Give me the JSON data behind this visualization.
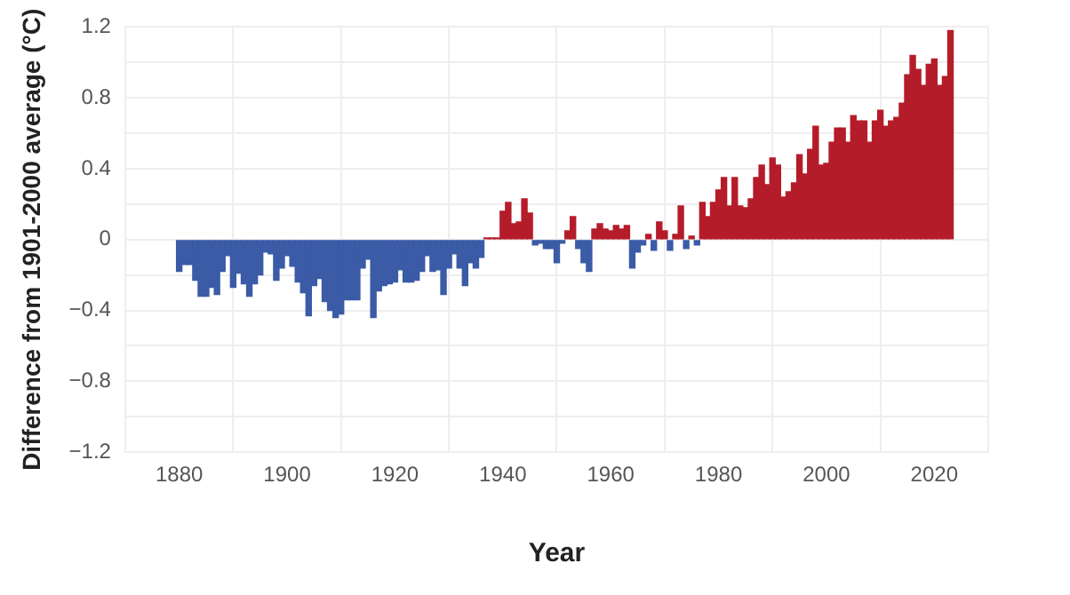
{
  "chart_data": {
    "type": "bar",
    "xlabel": "Year",
    "ylabel": "Difference from 1901-2000 average (°C)",
    "x": [
      1880,
      1881,
      1882,
      1883,
      1884,
      1885,
      1886,
      1887,
      1888,
      1889,
      1890,
      1891,
      1892,
      1893,
      1894,
      1895,
      1896,
      1897,
      1898,
      1899,
      1900,
      1901,
      1902,
      1903,
      1904,
      1905,
      1906,
      1907,
      1908,
      1909,
      1910,
      1911,
      1912,
      1913,
      1914,
      1915,
      1916,
      1917,
      1918,
      1919,
      1920,
      1921,
      1922,
      1923,
      1924,
      1925,
      1926,
      1927,
      1928,
      1929,
      1930,
      1931,
      1932,
      1933,
      1934,
      1935,
      1936,
      1937,
      1938,
      1939,
      1940,
      1941,
      1942,
      1943,
      1944,
      1945,
      1946,
      1947,
      1948,
      1949,
      1950,
      1951,
      1952,
      1953,
      1954,
      1955,
      1956,
      1957,
      1958,
      1959,
      1960,
      1961,
      1962,
      1963,
      1964,
      1965,
      1966,
      1967,
      1968,
      1969,
      1970,
      1971,
      1972,
      1973,
      1974,
      1975,
      1976,
      1977,
      1978,
      1979,
      1980,
      1981,
      1982,
      1983,
      1984,
      1985,
      1986,
      1987,
      1988,
      1989,
      1990,
      1991,
      1992,
      1993,
      1994,
      1995,
      1996,
      1997,
      1998,
      1999,
      2000,
      2001,
      2002,
      2003,
      2004,
      2005,
      2006,
      2007,
      2008,
      2009,
      2010,
      2011,
      2012,
      2013,
      2014,
      2015,
      2016,
      2017,
      2018,
      2019,
      2020,
      2021,
      2022,
      2023
    ],
    "values": [
      -0.18,
      -0.14,
      -0.14,
      -0.23,
      -0.32,
      -0.32,
      -0.27,
      -0.31,
      -0.18,
      -0.09,
      -0.27,
      -0.19,
      -0.25,
      -0.32,
      -0.25,
      -0.2,
      -0.07,
      -0.08,
      -0.23,
      -0.16,
      -0.09,
      -0.15,
      -0.24,
      -0.3,
      -0.43,
      -0.26,
      -0.22,
      -0.35,
      -0.4,
      -0.44,
      -0.42,
      -0.34,
      -0.34,
      -0.34,
      -0.16,
      -0.11,
      -0.44,
      -0.29,
      -0.26,
      -0.25,
      -0.24,
      -0.17,
      -0.24,
      -0.24,
      -0.23,
      -0.18,
      -0.09,
      -0.18,
      -0.17,
      -0.31,
      -0.16,
      -0.08,
      -0.16,
      -0.26,
      -0.13,
      -0.16,
      -0.1,
      0.01,
      0.01,
      0.01,
      0.16,
      0.21,
      0.09,
      0.1,
      0.23,
      0.15,
      -0.03,
      -0.02,
      -0.05,
      -0.05,
      -0.13,
      -0.02,
      0.05,
      0.13,
      -0.05,
      -0.13,
      -0.18,
      0.06,
      0.09,
      0.06,
      0.05,
      0.08,
      0.06,
      0.08,
      -0.16,
      -0.07,
      -0.03,
      0.03,
      -0.06,
      0.1,
      0.05,
      -0.06,
      0.03,
      0.19,
      -0.05,
      0.02,
      -0.03,
      0.21,
      0.13,
      0.21,
      0.28,
      0.35,
      0.19,
      0.35,
      0.19,
      0.18,
      0.23,
      0.35,
      0.42,
      0.31,
      0.46,
      0.42,
      0.24,
      0.27,
      0.32,
      0.48,
      0.37,
      0.51,
      0.64,
      0.42,
      0.43,
      0.55,
      0.63,
      0.63,
      0.55,
      0.7,
      0.67,
      0.67,
      0.55,
      0.67,
      0.73,
      0.64,
      0.67,
      0.69,
      0.77,
      0.93,
      1.04,
      0.96,
      0.87,
      0.99,
      1.02,
      0.87,
      0.92,
      1.18
    ],
    "colors": [
      "#3b5ba7",
      "#3b5ba7",
      "#3b5ba7",
      "#3b5ba7",
      "#3b5ba7",
      "#3b5ba7",
      "#3b5ba7",
      "#3b5ba7",
      "#3b5ba7",
      "#3b5ba7",
      "#3b5ba7",
      "#3b5ba7",
      "#3b5ba7",
      "#3b5ba7",
      "#3b5ba7",
      "#3b5ba7",
      "#3b5ba7",
      "#3b5ba7",
      "#3b5ba7",
      "#3b5ba7",
      "#3b5ba7",
      "#3b5ba7",
      "#3b5ba7",
      "#3b5ba7",
      "#3b5ba7",
      "#3b5ba7",
      "#3b5ba7",
      "#3b5ba7",
      "#3b5ba7",
      "#3b5ba7",
      "#3b5ba7",
      "#3b5ba7",
      "#3b5ba7",
      "#3b5ba7",
      "#3b5ba7",
      "#3b5ba7",
      "#3b5ba7",
      "#3b5ba7",
      "#3b5ba7",
      "#3b5ba7",
      "#3b5ba7",
      "#3b5ba7",
      "#3b5ba7",
      "#3b5ba7",
      "#3b5ba7",
      "#3b5ba7",
      "#3b5ba7",
      "#3b5ba7",
      "#3b5ba7",
      "#3b5ba7",
      "#3b5ba7",
      "#3b5ba7",
      "#3b5ba7",
      "#3b5ba7",
      "#3b5ba7",
      "#3b5ba7",
      "#3b5ba7",
      "#b51c2a",
      "#b51c2a",
      "#b51c2a",
      "#b51c2a",
      "#b51c2a",
      "#b51c2a",
      "#b51c2a",
      "#b51c2a",
      "#b51c2a",
      "#3b5ba7",
      "#3b5ba7",
      "#3b5ba7",
      "#3b5ba7",
      "#3b5ba7",
      "#3b5ba7",
      "#b51c2a",
      "#b51c2a",
      "#3b5ba7",
      "#3b5ba7",
      "#3b5ba7",
      "#b51c2a",
      "#b51c2a",
      "#b51c2a",
      "#b51c2a",
      "#b51c2a",
      "#b51c2a",
      "#b51c2a",
      "#3b5ba7",
      "#3b5ba7",
      "#3b5ba7",
      "#b51c2a",
      "#3b5ba7",
      "#b51c2a",
      "#b51c2a",
      "#3b5ba7",
      "#b51c2a",
      "#b51c2a",
      "#3b5ba7",
      "#b51c2a",
      "#3b5ba7",
      "#b51c2a",
      "#b51c2a",
      "#b51c2a",
      "#b51c2a",
      "#b51c2a",
      "#b51c2a",
      "#b51c2a",
      "#b51c2a",
      "#b51c2a",
      "#b51c2a",
      "#b51c2a",
      "#b51c2a",
      "#b51c2a",
      "#b51c2a",
      "#b51c2a",
      "#b51c2a",
      "#b51c2a",
      "#b51c2a",
      "#b51c2a",
      "#b51c2a",
      "#b51c2a",
      "#b51c2a",
      "#b51c2a",
      "#b51c2a",
      "#b51c2a",
      "#b51c2a",
      "#b51c2a",
      "#b51c2a",
      "#b51c2a",
      "#b51c2a",
      "#b51c2a",
      "#b51c2a",
      "#b51c2a",
      "#b51c2a",
      "#b51c2a",
      "#b51c2a",
      "#b51c2a",
      "#b51c2a",
      "#b51c2a",
      "#b51c2a",
      "#b51c2a",
      "#b51c2a",
      "#b51c2a",
      "#b51c2a",
      "#b51c2a",
      "#b51c2a",
      "#b51c2a"
    ],
    "xlim": [
      1870,
      2030
    ],
    "xticks": [
      1880,
      1900,
      1920,
      1940,
      1960,
      1980,
      2000,
      2020
    ],
    "ylim": [
      -1.2,
      1.2
    ],
    "yticks": [
      {
        "value": -1.2,
        "label": "−1.2"
      },
      {
        "value": -1.0,
        "label": null
      },
      {
        "value": -0.8,
        "label": "−0.8"
      },
      {
        "value": -0.6,
        "label": null
      },
      {
        "value": -0.4,
        "label": "−0.4"
      },
      {
        "value": -0.2,
        "label": null
      },
      0,
      {
        "value": 0.2,
        "label": null
      },
      {
        "value": 0.4,
        "label": "0.4"
      },
      {
        "value": 0.6,
        "label": null
      },
      {
        "value": 0.8,
        "label": "0.8"
      },
      {
        "value": 1.0,
        "label": null
      },
      {
        "value": 1.2,
        "label": "1.2"
      }
    ],
    "grid": true,
    "legend": false
  }
}
